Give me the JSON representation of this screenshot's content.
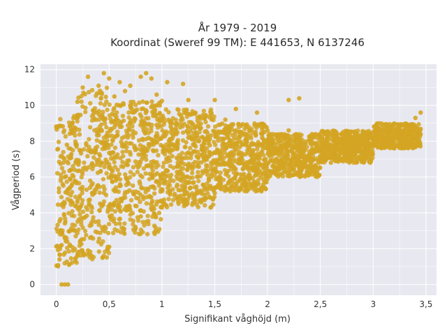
{
  "chart_data": {
    "type": "scatter",
    "title_line1": "År 1979 - 2019",
    "title_line2": "Koordinat (Sweref 99 TM): E 441653, N 6137246",
    "xlabel": "Signifikant våghöjd (m)",
    "ylabel": "Vågperiod (s)",
    "xlim": [
      -0.15,
      3.6
    ],
    "ylim": [
      -0.6,
      12.3
    ],
    "x_ticks": [
      0,
      0.5,
      1,
      1.5,
      2,
      2.5,
      3,
      3.5
    ],
    "x_tick_labels": [
      "0",
      "0,5",
      "1",
      "1,5",
      "2",
      "2,5",
      "3",
      "3,5"
    ],
    "y_ticks": [
      0,
      2,
      4,
      6,
      8,
      10,
      12
    ],
    "y_tick_labels": [
      "0",
      "2",
      "4",
      "6",
      "8",
      "10",
      "12"
    ],
    "grid": true,
    "marker_color": "#d4a522",
    "plot_background": "#e8e8f0",
    "points": [
      {
        "x": 0.05,
        "y": 0.0
      },
      {
        "x": 0.08,
        "y": 0.0
      },
      {
        "x": 0.11,
        "y": 0.0
      },
      {
        "x": 0.03,
        "y": 1.4
      },
      {
        "x": 0.05,
        "y": 2.2
      },
      {
        "x": 0.04,
        "y": 3.0
      },
      {
        "x": 0.06,
        "y": 4.5
      },
      {
        "x": 0.08,
        "y": 6.0
      },
      {
        "x": 0.1,
        "y": 7.8
      },
      {
        "x": 0.12,
        "y": 1.1
      },
      {
        "x": 0.15,
        "y": 9.0
      },
      {
        "x": 0.2,
        "y": 10.2
      },
      {
        "x": 0.25,
        "y": 11.0
      },
      {
        "x": 0.3,
        "y": 11.6
      },
      {
        "x": 0.35,
        "y": 9.5
      },
      {
        "x": 0.4,
        "y": 11.1
      },
      {
        "x": 0.45,
        "y": 11.8
      },
      {
        "x": 0.5,
        "y": 11.5
      },
      {
        "x": 0.55,
        "y": 10.5
      },
      {
        "x": 0.6,
        "y": 11.3
      },
      {
        "x": 0.65,
        "y": 10.8
      },
      {
        "x": 0.7,
        "y": 11.1
      },
      {
        "x": 0.8,
        "y": 11.6
      },
      {
        "x": 0.85,
        "y": 11.8
      },
      {
        "x": 0.9,
        "y": 11.5
      },
      {
        "x": 0.95,
        "y": 10.6
      },
      {
        "x": 1.05,
        "y": 11.3
      },
      {
        "x": 1.2,
        "y": 11.2
      },
      {
        "x": 1.25,
        "y": 10.3
      },
      {
        "x": 1.5,
        "y": 10.3
      },
      {
        "x": 1.7,
        "y": 9.8
      },
      {
        "x": 1.9,
        "y": 9.6
      },
      {
        "x": 2.3,
        "y": 10.4
      },
      {
        "x": 2.2,
        "y": 10.3
      },
      {
        "x": 0.2,
        "y": 1.6
      },
      {
        "x": 0.3,
        "y": 1.9
      },
      {
        "x": 0.5,
        "y": 2.1
      },
      {
        "x": 0.6,
        "y": 3.4
      },
      {
        "x": 0.8,
        "y": 3.8
      },
      {
        "x": 1.0,
        "y": 4.3
      },
      {
        "x": 1.2,
        "y": 4.6
      },
      {
        "x": 1.5,
        "y": 5.1
      },
      {
        "x": 1.8,
        "y": 5.6
      },
      {
        "x": 2.0,
        "y": 5.9
      },
      {
        "x": 2.3,
        "y": 6.3
      },
      {
        "x": 2.6,
        "y": 6.8
      },
      {
        "x": 2.9,
        "y": 7.3
      },
      {
        "x": 3.2,
        "y": 7.8
      },
      {
        "x": 3.4,
        "y": 8.2
      },
      {
        "x": 3.45,
        "y": 9.6
      },
      {
        "x": 3.4,
        "y": 9.3
      },
      {
        "x": 3.3,
        "y": 8.9
      },
      {
        "x": 3.1,
        "y": 8.6
      },
      {
        "x": 2.9,
        "y": 8.3
      },
      {
        "x": 2.7,
        "y": 8.4
      },
      {
        "x": 2.5,
        "y": 8.0
      },
      {
        "x": 2.2,
        "y": 8.6
      },
      {
        "x": 2.0,
        "y": 8.6
      },
      {
        "x": 1.8,
        "y": 8.8
      },
      {
        "x": 1.6,
        "y": 9.2
      }
    ],
    "density_bands": [
      {
        "x_from": 0.0,
        "x_to": 0.2,
        "y_low": 1.0,
        "y_high": 9.5
      },
      {
        "x_from": 0.2,
        "x_to": 0.5,
        "y_low": 1.4,
        "y_high": 11.0
      },
      {
        "x_from": 0.5,
        "x_to": 1.0,
        "y_low": 2.8,
        "y_high": 10.3
      },
      {
        "x_from": 1.0,
        "x_to": 1.5,
        "y_low": 4.3,
        "y_high": 9.8
      },
      {
        "x_from": 1.5,
        "x_to": 2.0,
        "y_low": 5.2,
        "y_high": 9.0
      },
      {
        "x_from": 2.0,
        "x_to": 2.5,
        "y_low": 6.0,
        "y_high": 8.4
      },
      {
        "x_from": 2.5,
        "x_to": 3.0,
        "y_low": 6.8,
        "y_high": 8.6
      },
      {
        "x_from": 3.0,
        "x_to": 3.45,
        "y_low": 7.6,
        "y_high": 9.0
      }
    ]
  }
}
